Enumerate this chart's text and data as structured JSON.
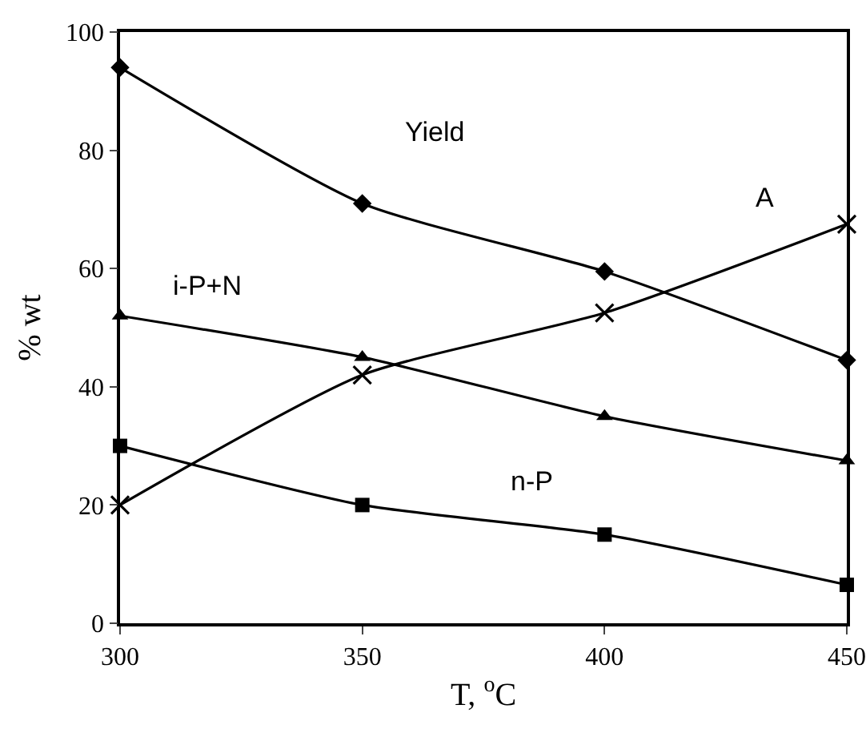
{
  "chart_data": {
    "type": "line",
    "xlabel": "T, $^{o}$C",
    "ylabel": "% wt",
    "x": [
      300,
      350,
      400,
      450
    ],
    "series": [
      {
        "name": "Yield",
        "color": "#000000",
        "marker": "diamond",
        "values": [
          94,
          71,
          59.5,
          44.5
        ]
      },
      {
        "name": "i-P+N",
        "color": "#000000",
        "marker": "triangle",
        "values": [
          52,
          45,
          35,
          27.5
        ]
      },
      {
        "name": "A",
        "color": "#000000",
        "marker": "cross",
        "values": [
          20,
          42,
          52.5,
          67.5
        ]
      },
      {
        "name": "n-P",
        "color": "#000000",
        "marker": "square",
        "values": [
          30,
          20,
          15,
          6.5
        ]
      }
    ],
    "xlim": [
      300,
      450
    ],
    "xticks": [
      300,
      350,
      400,
      450
    ],
    "ylim": [
      0,
      100
    ],
    "yticks": [
      0,
      20,
      40,
      60,
      80,
      100
    ],
    "grid": false,
    "legend": false,
    "line_style": "solid"
  }
}
